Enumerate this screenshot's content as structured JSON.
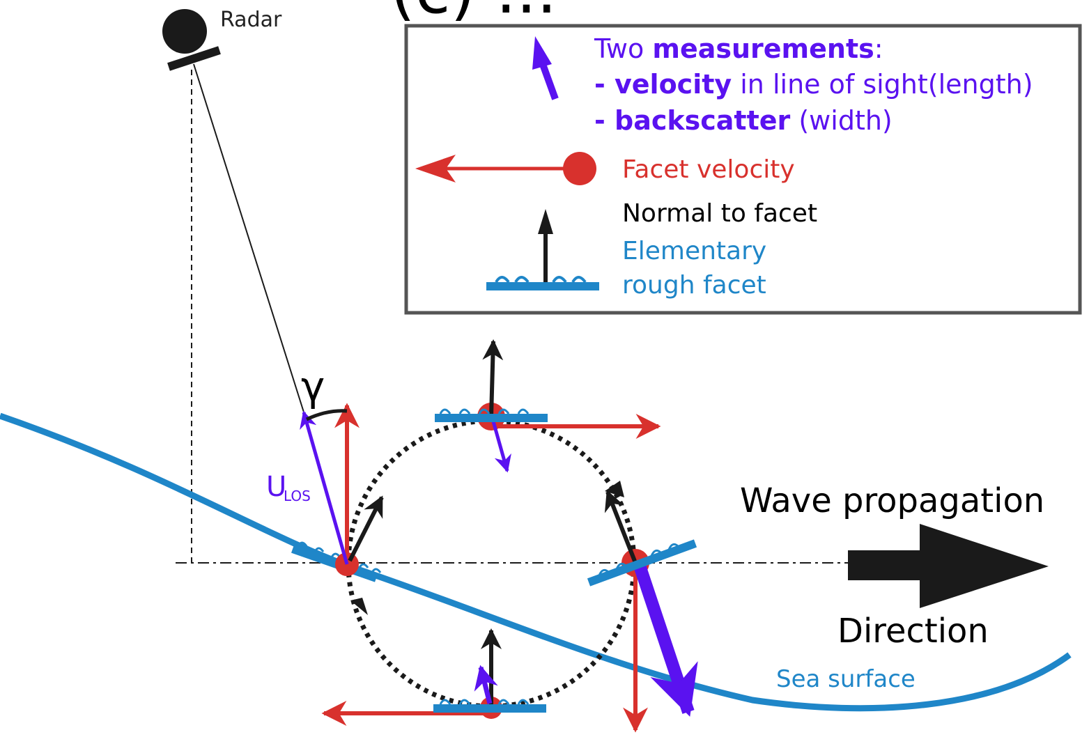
{
  "title_fragment": "(c) ...",
  "colors": {
    "sea": "#1f86c8",
    "facet_velocity": "#d8312d",
    "measurement": "#5a12f0",
    "normal": "#1a1a1a",
    "legend_text_black": "#000000"
  },
  "labels": {
    "radar": "Radar",
    "gamma": "γ",
    "u_los_main": "U",
    "u_los_sub": "LOS",
    "wave_propagation": "Wave propagation",
    "direction": "Direction",
    "sea_surface": "Sea surface"
  },
  "legend": {
    "line1_prefix": "Two ",
    "line1_bold": "measurements",
    "line1_suffix": ":",
    "line2_bold": "- velocity",
    "line2_rest": " in line of sight(length)",
    "line3_bold": "- backscatter",
    "line3_rest": " (width)",
    "facet_velocity": "Facet velocity",
    "normal_to_facet": "Normal to facet",
    "elementary_line1": "Elementary",
    "elementary_line2": "rough facet"
  }
}
